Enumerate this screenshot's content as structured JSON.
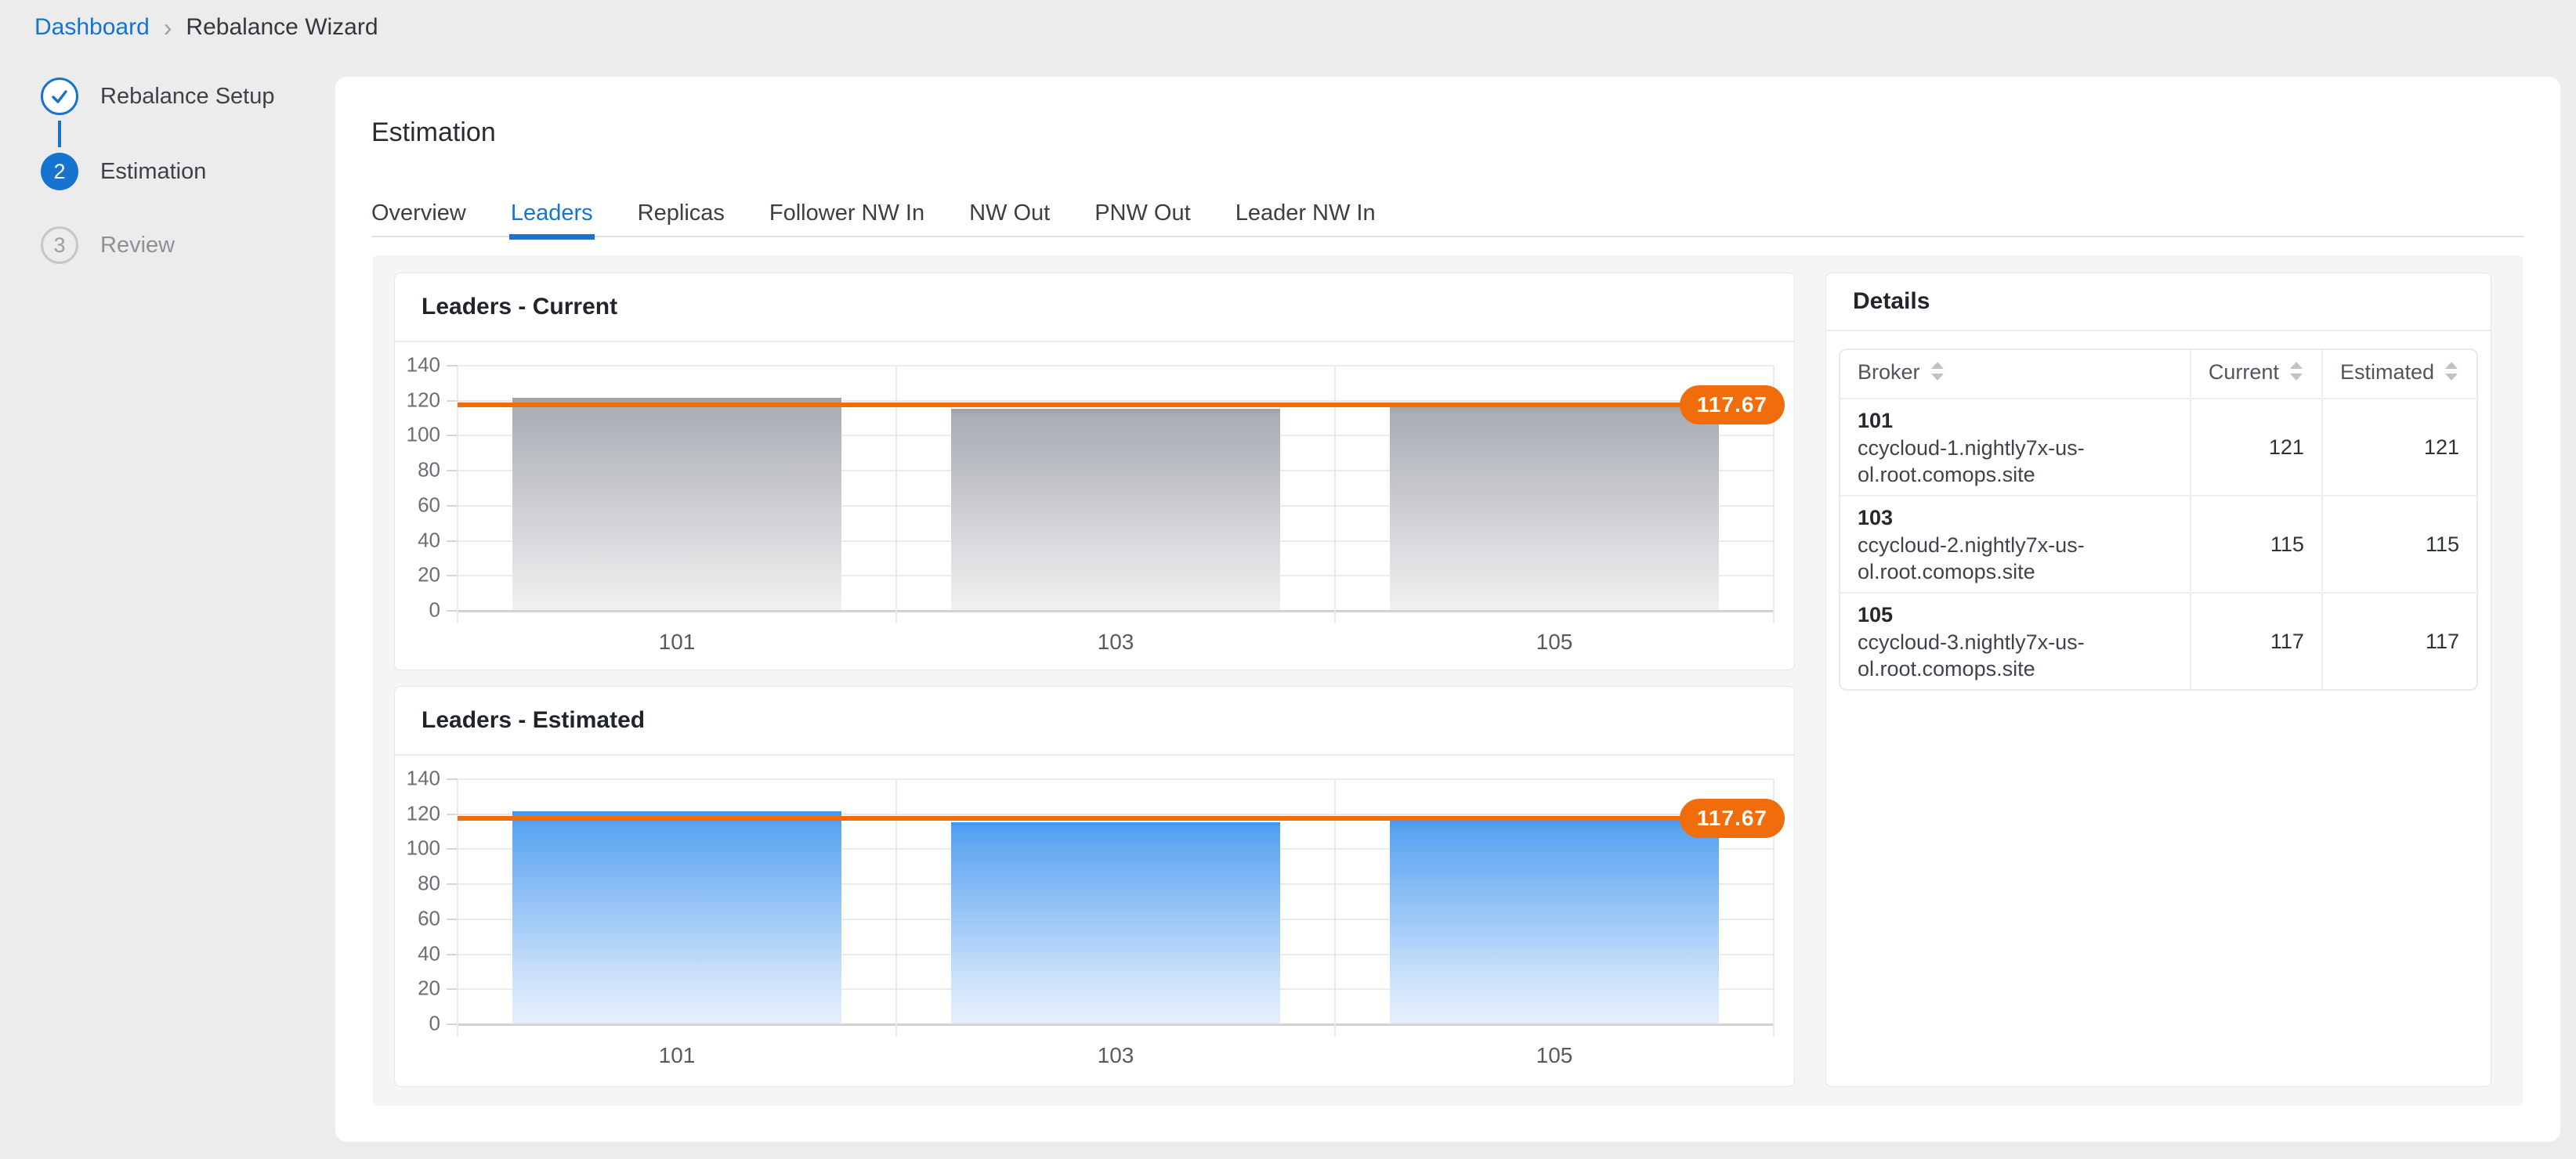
{
  "breadcrumb": {
    "separator": "›",
    "items": [
      {
        "label": "Dashboard",
        "type": "link"
      },
      {
        "label": "Rebalance Wizard",
        "type": "current"
      }
    ]
  },
  "stepper": {
    "steps": [
      {
        "number": "1",
        "label": "Rebalance Setup",
        "state": "completed"
      },
      {
        "number": "2",
        "label": "Estimation",
        "state": "active"
      },
      {
        "number": "3",
        "label": "Review",
        "state": "pending"
      }
    ]
  },
  "main": {
    "title": "Estimation",
    "tabs": [
      {
        "label": "Overview",
        "active": false
      },
      {
        "label": "Leaders",
        "active": true
      },
      {
        "label": "Replicas",
        "active": false
      },
      {
        "label": "Follower NW In",
        "active": false
      },
      {
        "label": "NW Out",
        "active": false
      },
      {
        "label": "PNW Out",
        "active": false
      },
      {
        "label": "Leader NW In",
        "active": false
      }
    ]
  },
  "details": {
    "title": "Details",
    "columns": [
      {
        "label": "Broker",
        "sortable": true
      },
      {
        "label": "Current",
        "sortable": true
      },
      {
        "label": "Estimated",
        "sortable": true
      }
    ],
    "rows": [
      {
        "broker_id": "101",
        "host": "ccycloud-1.nightly7x-us-ol.root.comops.site",
        "current": "121",
        "estimated": "121"
      },
      {
        "broker_id": "103",
        "host": "ccycloud-2.nightly7x-us-ol.root.comops.site",
        "current": "115",
        "estimated": "115"
      },
      {
        "broker_id": "105",
        "host": "ccycloud-3.nightly7x-us-ol.root.comops.site",
        "current": "117",
        "estimated": "117"
      }
    ]
  },
  "chart_data": [
    {
      "type": "bar",
      "title": "Leaders - Current",
      "categories": [
        "101",
        "103",
        "105"
      ],
      "values": [
        121,
        115,
        117
      ],
      "xlabel": "",
      "ylabel": "",
      "ylim": [
        0,
        140
      ],
      "ytick_step": 20,
      "grid": true,
      "legend": false,
      "bar_style": "gray-gradient",
      "threshold": {
        "value": 117.67,
        "label": "117.67",
        "color": "#f16c0b"
      }
    },
    {
      "type": "bar",
      "title": "Leaders - Estimated",
      "categories": [
        "101",
        "103",
        "105"
      ],
      "values": [
        121,
        115,
        117
      ],
      "xlabel": "",
      "ylabel": "",
      "ylim": [
        0,
        140
      ],
      "ytick_step": 20,
      "grid": true,
      "legend": false,
      "bar_style": "blue-gradient",
      "threshold": {
        "value": 117.67,
        "label": "117.67",
        "color": "#f16c0b"
      }
    }
  ],
  "colors": {
    "accent_blue": "#1673d0",
    "threshold_orange": "#f16c0b",
    "page_bg": "#ececec",
    "panel_bg": "#f4f5f6"
  }
}
